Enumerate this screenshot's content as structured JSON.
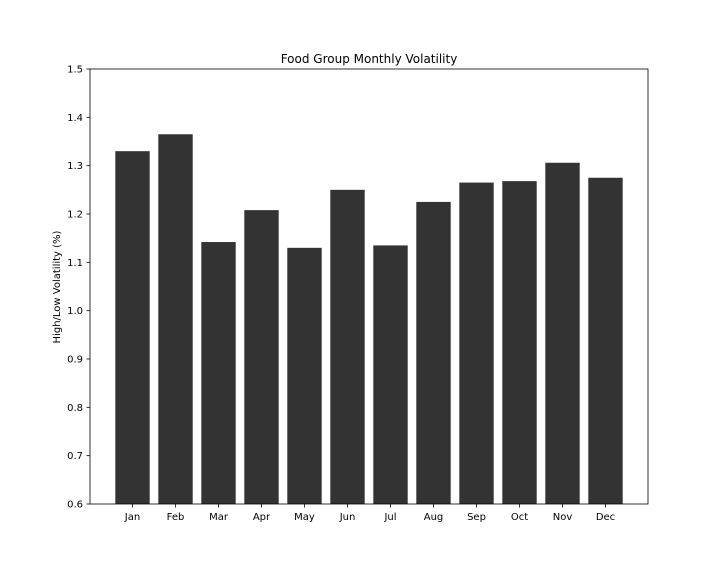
{
  "chart_data": {
    "type": "bar",
    "title": "Food Group Monthly Volatility",
    "xlabel": "",
    "ylabel": "High/Low Volatility (%)",
    "categories": [
      "Jan",
      "Feb",
      "Mar",
      "Apr",
      "May",
      "Jun",
      "Jul",
      "Aug",
      "Sep",
      "Oct",
      "Nov",
      "Dec"
    ],
    "values": [
      1.33,
      1.365,
      1.142,
      1.208,
      1.13,
      1.25,
      1.135,
      1.225,
      1.265,
      1.268,
      1.306,
      1.275
    ],
    "ylim": [
      0.6,
      1.5
    ],
    "yticks": [
      "0.6",
      "0.7",
      "0.8",
      "0.9",
      "1.0",
      "1.1",
      "1.2",
      "1.3",
      "1.4",
      "1.5"
    ],
    "bar_color": "#333333",
    "grid": false,
    "legend": null
  }
}
